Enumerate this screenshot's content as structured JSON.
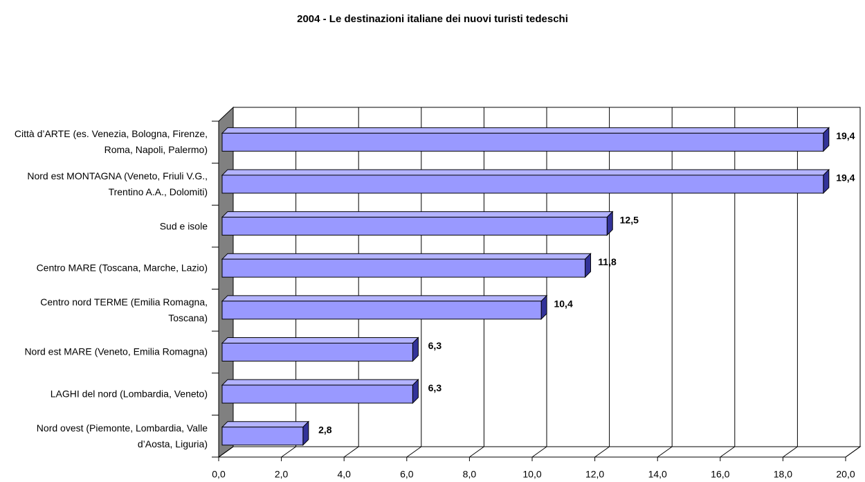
{
  "chart_data": {
    "type": "hbar3d",
    "title": "2004 - Le destinazioni italiane dei nuovi turisti tedeschi",
    "categories": [
      "Città d’ARTE (es. Venezia, Bologna, Firenze, Roma, Napoli, Palermo)",
      "Nord est MONTAGNA (Veneto, Friuli V.G., Trentino A.A., Dolomiti)",
      "Sud e isole",
      "Centro MARE (Toscana, Marche, Lazio)",
      "Centro nord TERME (Emilia Romagna, Toscana)",
      "Nord est MARE (Veneto, Emilia Romagna)",
      "LAGHI del nord (Lombardia, Veneto)",
      "Nord ovest (Piemonte, Lombardia, Valle d’Aosta, Liguria)"
    ],
    "values": [
      19.4,
      19.4,
      12.5,
      11.8,
      10.4,
      6.3,
      6.3,
      2.8
    ],
    "value_labels": [
      "19,4",
      "19,4",
      "12,5",
      "11,8",
      "10,4",
      "6,3",
      "6,3",
      "2,8"
    ],
    "color": "#9999ff",
    "xlim": [
      0,
      20
    ],
    "xticks": [
      {
        "value": 0,
        "label": "0,0"
      },
      {
        "value": 2,
        "label": "2,0"
      },
      {
        "value": 4,
        "label": "4,0"
      },
      {
        "value": 6,
        "label": "6,0"
      },
      {
        "value": 8,
        "label": "8,0"
      },
      {
        "value": 10,
        "label": "10,0"
      },
      {
        "value": 12,
        "label": "12,0"
      },
      {
        "value": 14,
        "label": "14,0"
      },
      {
        "value": 16,
        "label": "16,0"
      },
      {
        "value": 18,
        "label": "18,0"
      },
      {
        "value": 20,
        "label": "20,0"
      }
    ],
    "grid": true
  }
}
